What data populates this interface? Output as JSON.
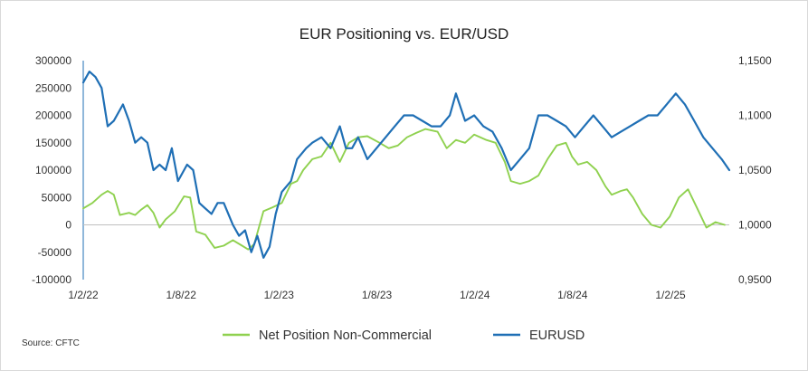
{
  "chart_data": {
    "type": "line",
    "title": "EUR Positioning vs. EUR/USD",
    "source": "Source: CFTC",
    "x_labels": [
      "1/2/22",
      "1/8/22",
      "1/2/23",
      "1/8/23",
      "1/2/24",
      "1/8/24",
      "1/2/25"
    ],
    "x_range": [
      0,
      42.3
    ],
    "y_left": {
      "range": [
        -100000,
        300000
      ],
      "ticks": [
        -100000,
        -50000,
        0,
        50000,
        100000,
        150000,
        200000,
        250000,
        300000
      ],
      "tick_labels": [
        "-100000",
        "-50000",
        "0",
        "50000",
        "100000",
        "150000",
        "200000",
        "250000",
        "300000"
      ]
    },
    "y_right": {
      "range": [
        0.95,
        1.15
      ],
      "ticks": [
        0.95,
        1.0,
        1.05,
        1.1,
        1.15
      ],
      "tick_labels": [
        "0,9500",
        "1,0000",
        "1,0500",
        "1,1000",
        "1,1500"
      ]
    },
    "series": [
      {
        "name": "Net Position Non-Commercial",
        "axis": "left",
        "color": "#8fd14f",
        "points": [
          [
            0,
            30000
          ],
          [
            0.6,
            40000
          ],
          [
            1.2,
            55000
          ],
          [
            1.6,
            62000
          ],
          [
            2.0,
            55000
          ],
          [
            2.4,
            18000
          ],
          [
            3.0,
            22000
          ],
          [
            3.4,
            18000
          ],
          [
            3.8,
            28000
          ],
          [
            4.2,
            36000
          ],
          [
            4.6,
            22000
          ],
          [
            5.0,
            -5000
          ],
          [
            5.4,
            10000
          ],
          [
            6.0,
            25000
          ],
          [
            6.6,
            52000
          ],
          [
            7.0,
            50000
          ],
          [
            7.4,
            -12000
          ],
          [
            8.0,
            -18000
          ],
          [
            8.6,
            -42000
          ],
          [
            9.2,
            -38000
          ],
          [
            9.8,
            -28000
          ],
          [
            10.4,
            -38000
          ],
          [
            10.8,
            -45000
          ],
          [
            11.2,
            -35000
          ],
          [
            11.8,
            25000
          ],
          [
            12.4,
            32000
          ],
          [
            13.0,
            40000
          ],
          [
            13.6,
            75000
          ],
          [
            14.0,
            80000
          ],
          [
            14.4,
            100000
          ],
          [
            15.0,
            120000
          ],
          [
            15.6,
            125000
          ],
          [
            16.2,
            150000
          ],
          [
            16.8,
            115000
          ],
          [
            17.4,
            150000
          ],
          [
            18.0,
            160000
          ],
          [
            18.6,
            162000
          ],
          [
            19.4,
            150000
          ],
          [
            20.0,
            140000
          ],
          [
            20.6,
            145000
          ],
          [
            21.2,
            160000
          ],
          [
            21.8,
            168000
          ],
          [
            22.4,
            175000
          ],
          [
            23.2,
            170000
          ],
          [
            23.8,
            140000
          ],
          [
            24.4,
            155000
          ],
          [
            25.0,
            150000
          ],
          [
            25.6,
            165000
          ],
          [
            26.4,
            155000
          ],
          [
            27.0,
            150000
          ],
          [
            27.6,
            115000
          ],
          [
            28.0,
            80000
          ],
          [
            28.6,
            75000
          ],
          [
            29.2,
            80000
          ],
          [
            29.8,
            90000
          ],
          [
            30.4,
            120000
          ],
          [
            31.0,
            145000
          ],
          [
            31.6,
            150000
          ],
          [
            32.0,
            125000
          ],
          [
            32.4,
            110000
          ],
          [
            33.0,
            115000
          ],
          [
            33.6,
            100000
          ],
          [
            34.2,
            70000
          ],
          [
            34.6,
            55000
          ],
          [
            35.2,
            62000
          ],
          [
            35.6,
            65000
          ],
          [
            36.0,
            50000
          ],
          [
            36.6,
            20000
          ],
          [
            37.2,
            0
          ],
          [
            37.8,
            -5000
          ],
          [
            38.4,
            15000
          ],
          [
            39.0,
            50000
          ],
          [
            39.6,
            65000
          ],
          [
            40.2,
            30000
          ],
          [
            40.8,
            -5000
          ],
          [
            41.4,
            5000
          ],
          [
            42.0,
            0
          ]
        ]
      },
      {
        "name": "EURUSD",
        "axis": "right",
        "color": "#1f6fb5",
        "points": [
          [
            0,
            1.13
          ],
          [
            0.4,
            1.14
          ],
          [
            0.8,
            1.135
          ],
          [
            1.2,
            1.125
          ],
          [
            1.6,
            1.09
          ],
          [
            2.0,
            1.095
          ],
          [
            2.6,
            1.11
          ],
          [
            3.0,
            1.095
          ],
          [
            3.4,
            1.075
          ],
          [
            3.8,
            1.08
          ],
          [
            4.2,
            1.075
          ],
          [
            4.6,
            1.05
          ],
          [
            5.0,
            1.055
          ],
          [
            5.4,
            1.05
          ],
          [
            5.8,
            1.07
          ],
          [
            6.2,
            1.04
          ],
          [
            6.8,
            1.055
          ],
          [
            7.2,
            1.05
          ],
          [
            7.6,
            1.02
          ],
          [
            8.0,
            1.015
          ],
          [
            8.4,
            1.01
          ],
          [
            8.8,
            1.02
          ],
          [
            9.2,
            1.02
          ],
          [
            9.8,
            1.0
          ],
          [
            10.2,
            0.99
          ],
          [
            10.6,
            0.995
          ],
          [
            11.0,
            0.975
          ],
          [
            11.4,
            0.99
          ],
          [
            11.8,
            0.97
          ],
          [
            12.2,
            0.98
          ],
          [
            12.6,
            1.01
          ],
          [
            13.0,
            1.03
          ],
          [
            13.6,
            1.04
          ],
          [
            14.0,
            1.06
          ],
          [
            14.6,
            1.07
          ],
          [
            15.0,
            1.075
          ],
          [
            15.6,
            1.08
          ],
          [
            16.2,
            1.07
          ],
          [
            16.8,
            1.09
          ],
          [
            17.2,
            1.07
          ],
          [
            17.6,
            1.07
          ],
          [
            18.0,
            1.08
          ],
          [
            18.6,
            1.06
          ],
          [
            19.2,
            1.07
          ],
          [
            19.8,
            1.08
          ],
          [
            20.4,
            1.09
          ],
          [
            21.0,
            1.1
          ],
          [
            21.6,
            1.1
          ],
          [
            22.2,
            1.095
          ],
          [
            22.8,
            1.09
          ],
          [
            23.4,
            1.09
          ],
          [
            24.0,
            1.1
          ],
          [
            24.4,
            1.12
          ],
          [
            25.0,
            1.095
          ],
          [
            25.6,
            1.1
          ],
          [
            26.2,
            1.09
          ],
          [
            26.8,
            1.085
          ],
          [
            27.4,
            1.07
          ],
          [
            28.0,
            1.05
          ],
          [
            28.6,
            1.06
          ],
          [
            29.2,
            1.07
          ],
          [
            29.8,
            1.1
          ],
          [
            30.4,
            1.1
          ],
          [
            31.0,
            1.095
          ],
          [
            31.6,
            1.09
          ],
          [
            32.2,
            1.08
          ],
          [
            32.8,
            1.09
          ],
          [
            33.4,
            1.1
          ],
          [
            34.0,
            1.09
          ],
          [
            34.6,
            1.08
          ],
          [
            35.2,
            1.085
          ],
          [
            35.8,
            1.09
          ],
          [
            36.4,
            1.095
          ],
          [
            37.0,
            1.1
          ],
          [
            37.6,
            1.1
          ],
          [
            38.2,
            1.11
          ],
          [
            38.8,
            1.12
          ],
          [
            39.4,
            1.11
          ],
          [
            40.0,
            1.095
          ],
          [
            40.6,
            1.08
          ],
          [
            41.2,
            1.07
          ],
          [
            41.8,
            1.06
          ],
          [
            42.3,
            1.05
          ]
        ]
      }
    ]
  }
}
